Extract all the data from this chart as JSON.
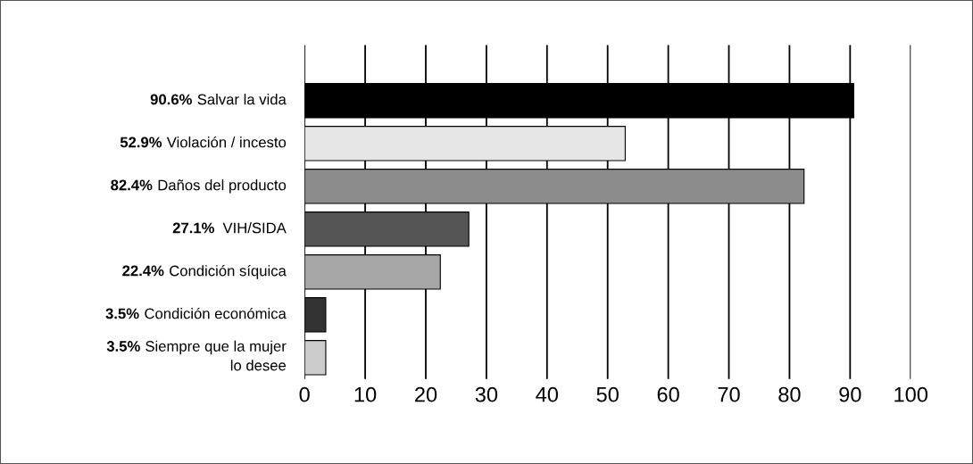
{
  "chart_data": {
    "type": "bar",
    "orientation": "horizontal",
    "categories": [
      "90.6% Salvar la vida",
      "52.9% Violación / incesto",
      "82.4% Daños del producto",
      "27.1%  VIH/SIDA",
      "22.4% Condición síquica",
      "3.5% Condición económica",
      "3.5% Siempre que la mujer\nlo desee"
    ],
    "values": [
      90.6,
      52.9,
      82.4,
      27.1,
      22.4,
      3.5,
      3.5
    ],
    "colors": [
      "#000000",
      "#e6e6e6",
      "#8c8c8c",
      "#555555",
      "#a6a6a6",
      "#333333",
      "#cccccc"
    ],
    "xlim": [
      0,
      100
    ],
    "xticks": [
      0,
      10,
      20,
      30,
      40,
      50,
      60,
      70,
      80,
      90,
      100
    ],
    "grid": "x",
    "legend": false
  }
}
